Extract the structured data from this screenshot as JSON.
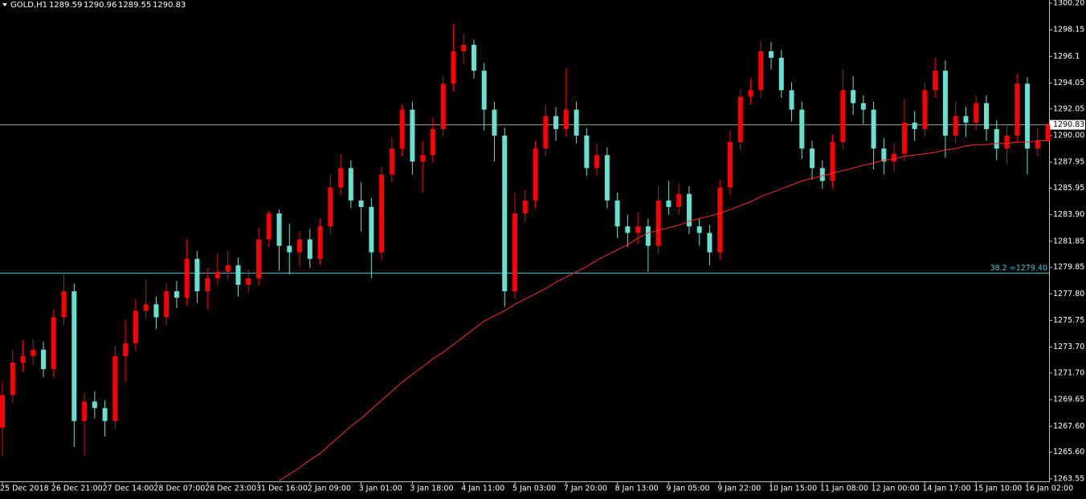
{
  "chart_data": {
    "type": "candlestick",
    "title": "GOLD,H1",
    "x": [
      "25 Dec 2018",
      null,
      null,
      null,
      null,
      "26 Dec 21:00",
      null,
      null,
      null,
      null,
      "27 Dec 14:00",
      null,
      null,
      null,
      null,
      "28 Dec 07:00",
      null,
      null,
      null,
      null,
      "28 Dec 23:00",
      null,
      null,
      null,
      null,
      "31 Dec 16:00",
      null,
      null,
      null,
      null,
      "2 Jan 09:00",
      null,
      null,
      null,
      null,
      "3 Jan 01:00",
      null,
      null,
      null,
      null,
      "3 Jan 18:00",
      null,
      null,
      null,
      null,
      "4 Jan 11:00",
      null,
      null,
      null,
      null,
      "5 Jan 03:00",
      null,
      null,
      null,
      null,
      "7 Jan 20:00",
      null,
      null,
      null,
      null,
      "8 Jan 13:00",
      null,
      null,
      null,
      null,
      "9 Jan 05:00",
      null,
      null,
      null,
      null,
      "9 Jan 22:00",
      null,
      null,
      null,
      null,
      "10 Jan 15:00",
      null,
      null,
      null,
      null,
      "11 Jan 08:00",
      null,
      null,
      null,
      null,
      "12 Jan 00:00",
      null,
      null,
      null,
      null,
      "14 Jan 17:00",
      null,
      null,
      null,
      null,
      "15 Jan 10:00",
      null,
      null,
      null,
      null,
      "16 Jan 02:00",
      null,
      null
    ],
    "open": [
      1267.5,
      1270,
      1272.5,
      1273,
      1273.5,
      1272,
      1276,
      1278,
      1268,
      1269.5,
      1269,
      1268,
      1273,
      1274,
      1276.5,
      1277,
      1276,
      1278,
      1277.5,
      1280.5,
      1278,
      1279,
      1279.5,
      1280,
      1278.5,
      1279,
      1282,
      1284,
      1281.5,
      1281,
      1282,
      1280.5,
      1283,
      1286,
      1287.5,
      1285,
      1284.5,
      1281,
      1287,
      1289,
      1292,
      1288,
      1288.5,
      1290.5,
      1294,
      1296.5,
      1297,
      1295,
      1292,
      1290,
      1278,
      1284,
      1285,
      1289,
      1291.5,
      1290.5,
      1292,
      1290,
      1287.5,
      1288.5,
      1285,
      1283,
      1282.5,
      1283,
      1281.5,
      1285,
      1284.5,
      1285.5,
      1283,
      1282.5,
      1281,
      1286,
      1289.5,
      1293,
      1293.5,
      1296.5,
      1296,
      1293.5,
      1292,
      1289,
      1287.5,
      1286.5,
      1289.5,
      1293.5,
      1292.5,
      1292,
      1289,
      1288,
      1288.6,
      1291,
      1290.5,
      1293.5,
      1295,
      1290,
      1291.5,
      1291,
      1292.5,
      1290.5,
      1289,
      1290,
      1294,
      1289,
      1289.59
    ],
    "high": [
      1271,
      1273.5,
      1274.2,
      1274.3,
      1274.1,
      1276.6,
      1279.3,
      1278.6,
      1270.2,
      1270.3,
      1269.6,
      1273.8,
      1275.8,
      1277.4,
      1278.9,
      1277.6,
      1278.6,
      1278.8,
      1282,
      1281.1,
      1279.8,
      1280.9,
      1281.1,
      1280.6,
      1279.7,
      1282.9,
      1284.2,
      1284.3,
      1283.2,
      1282.6,
      1282.8,
      1283.6,
      1287,
      1288.6,
      1288.1,
      1286.4,
      1285.2,
      1287.6,
      1289.9,
      1292.4,
      1292.6,
      1289.6,
      1291.4,
      1294.6,
      1298.6,
      1297.8,
      1297.4,
      1295.6,
      1292.6,
      1290.6,
      1285.6,
      1285.8,
      1289.6,
      1292.4,
      1292.2,
      1295.2,
      1292.6,
      1290.6,
      1289.4,
      1289.1,
      1285.6,
      1283.9,
      1284.1,
      1283.6,
      1286.1,
      1286.5,
      1286.3,
      1286.1,
      1283.6,
      1283.1,
      1286.6,
      1290.4,
      1293.6,
      1294.4,
      1297.3,
      1297.2,
      1296.6,
      1294.1,
      1292.6,
      1289.6,
      1288.1,
      1290.1,
      1295.1,
      1294.6,
      1293.1,
      1292.6,
      1289.8,
      1289.4,
      1292.8,
      1291.9,
      1294.1,
      1296,
      1295.8,
      1292.6,
      1292.2,
      1293.1,
      1293.1,
      1291.2,
      1290.9,
      1294.8,
      1294.5,
      1290.6,
      1290.96
    ],
    "low": [
      1265.3,
      1269.4,
      1271.8,
      1272.3,
      1271.4,
      1271.4,
      1275.4,
      1266,
      1265.3,
      1268.2,
      1266.8,
      1267.4,
      1271,
      1273.4,
      1275.9,
      1275.1,
      1275.4,
      1276.7,
      1276.9,
      1277.1,
      1276.6,
      1278.4,
      1278.9,
      1277.6,
      1277.9,
      1278.4,
      1281.4,
      1279.6,
      1279.3,
      1279.9,
      1279.8,
      1280,
      1282.4,
      1285.4,
      1284.4,
      1282.6,
      1279,
      1280.4,
      1286.4,
      1288.4,
      1287,
      1285.6,
      1287.9,
      1289.9,
      1293.4,
      1295.6,
      1294.4,
      1290.4,
      1288,
      1276.8,
      1277.4,
      1283.3,
      1284.4,
      1288.4,
      1289.6,
      1289.9,
      1289.4,
      1286.9,
      1286.9,
      1284.4,
      1282.1,
      1281.4,
      1281.6,
      1279.5,
      1280.9,
      1283.9,
      1283.9,
      1282.4,
      1281.5,
      1280,
      1280.4,
      1285.4,
      1288.9,
      1292.4,
      1292.9,
      1295.1,
      1292.9,
      1291.1,
      1288.2,
      1286.6,
      1285.9,
      1285.9,
      1288.9,
      1291.6,
      1290.9,
      1287.4,
      1287,
      1287.2,
      1288,
      1289.6,
      1289.9,
      1292.9,
      1288.3,
      1289.4,
      1289.9,
      1290.4,
      1289.6,
      1288.1,
      1287.8,
      1289.4,
      1287,
      1288.4,
      1289.55
    ],
    "close": [
      1270,
      1272.5,
      1273,
      1273.5,
      1272,
      1276,
      1278,
      1268,
      1269.5,
      1269,
      1268,
      1273,
      1274,
      1276.5,
      1277,
      1276,
      1278,
      1277.5,
      1280.5,
      1278,
      1279,
      1279.5,
      1280,
      1278.5,
      1279,
      1282,
      1284,
      1281.5,
      1281,
      1282,
      1280.5,
      1283,
      1286,
      1287.5,
      1285,
      1284.5,
      1281,
      1287,
      1289,
      1292,
      1288,
      1288.5,
      1290.5,
      1294,
      1296.5,
      1297,
      1295,
      1292,
      1290,
      1278,
      1284,
      1285,
      1289,
      1291.5,
      1290.5,
      1292,
      1290,
      1287.5,
      1288.5,
      1285,
      1283,
      1282.5,
      1283,
      1281.5,
      1285,
      1284.5,
      1285.5,
      1283,
      1282.5,
      1281,
      1286,
      1289.5,
      1293,
      1293.5,
      1296.5,
      1296,
      1293.5,
      1292,
      1289,
      1287.5,
      1286.5,
      1289.5,
      1293.5,
      1292.5,
      1292,
      1289,
      1288,
      1288.6,
      1291,
      1290.5,
      1293.5,
      1295,
      1290,
      1291.5,
      1291,
      1292.5,
      1290.5,
      1289,
      1290,
      1294,
      1289,
      1289.59,
      1290.83
    ],
    "up_color": "#ff0000",
    "down_color": "#66e0d0",
    "moving_average": {
      "color": "#ff2a2a",
      "values": [
        null,
        null,
        null,
        null,
        null,
        null,
        null,
        null,
        null,
        null,
        null,
        null,
        null,
        null,
        null,
        null,
        null,
        null,
        null,
        null,
        null,
        null,
        null,
        null,
        null,
        null,
        null,
        1263.4,
        1263.9,
        1264.4,
        1265.0,
        1265.5,
        1266.2,
        1266.9,
        1267.6,
        1268.2,
        1268.9,
        1269.6,
        1270.3,
        1271.0,
        1271.6,
        1272.2,
        1272.8,
        1273.3,
        1273.9,
        1274.5,
        1275.1,
        1275.7,
        1276.1,
        1276.5,
        1277.0,
        1277.4,
        1277.8,
        1278.2,
        1278.7,
        1279.1,
        1279.5,
        1279.9,
        1280.4,
        1280.8,
        1281.2,
        1281.6,
        1282.1,
        1282.5,
        1282.7,
        1282.9,
        1283.1,
        1283.4,
        1283.6,
        1283.8,
        1284.0,
        1284.3,
        1284.6,
        1284.9,
        1285.3,
        1285.6,
        1285.9,
        1286.2,
        1286.5,
        1286.7,
        1286.9,
        1287.1,
        1287.3,
        1287.5,
        1287.7,
        1287.9,
        1288.1,
        1288.2,
        1288.4,
        1288.5,
        1288.6,
        1288.7,
        1288.9,
        1289.0,
        1289.2,
        1289.3,
        1289.3,
        1289.4,
        1289.4,
        1289.5,
        1289.5,
        1289.6,
        1289.6
      ]
    },
    "fib_level": {
      "label": "38.2 =1279.40",
      "value": 1279.4,
      "color": "#38c8d8"
    },
    "ylim": [
      1263.35,
      1300.45
    ],
    "yticks": [
      {
        "value": 1300.2,
        "label": "1300.20"
      },
      1298.15,
      1296.1,
      {
        "value": 1294.05,
        "label": "1294.05"
      },
      1292.05,
      {
        "value": 1290,
        "label": "1290.00"
      },
      1287.95,
      1285.95,
      {
        "value": 1283.9,
        "label": "1283.90"
      },
      1281.85,
      1279.85,
      {
        "value": 1277.8,
        "label": "1277.80"
      },
      1275.75,
      {
        "value": 1273.7,
        "label": "1273.70"
      },
      {
        "value": 1271.7,
        "label": "1271.70"
      },
      1269.65,
      {
        "value": 1267.6,
        "label": "1267.60"
      },
      {
        "value": 1265.6,
        "label": "1265.60"
      },
      1263.55
    ]
  }
}
